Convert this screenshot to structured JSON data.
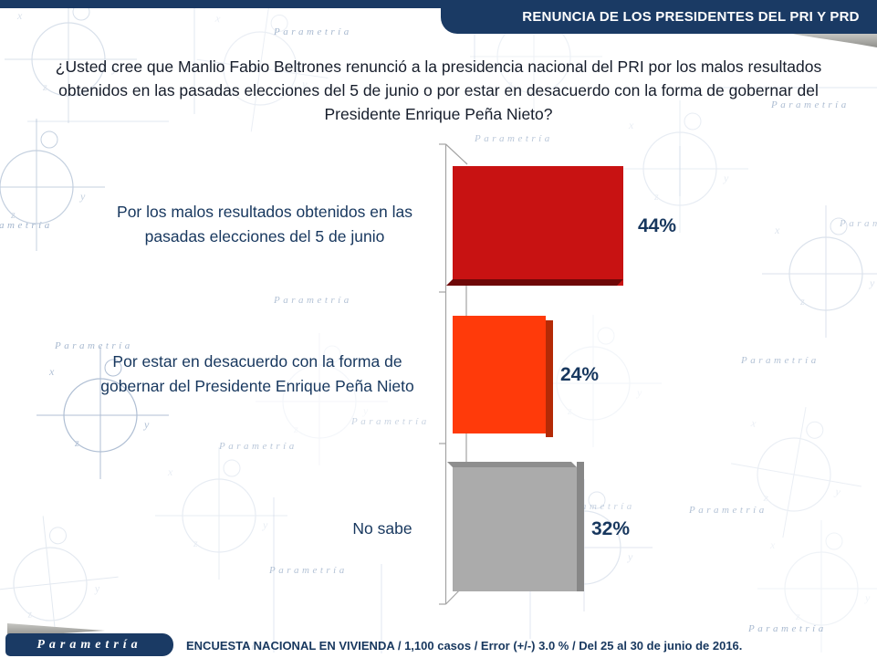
{
  "header": {
    "title": "RENUNCIA DE LOS PRESIDENTES DEL PRI Y PRD"
  },
  "question": "¿Usted cree que Manlio Fabio Beltrones renunció a la presidencia nacional del PRI por los malos resultados obtenidos en las pasadas elecciones del 5 de junio o por estar en desacuerdo con la forma de gobernar del Presidente Enrique Peña Nieto?",
  "chart_data": {
    "type": "bar",
    "orientation": "horizontal",
    "categories": [
      "Por los malos resultados obtenidos en las pasadas elecciones del 5 de junio",
      "Por estar en desacuerdo con la forma de gobernar del Presidente Enrique Peña Nieto",
      "No sabe"
    ],
    "values": [
      44,
      24,
      32
    ],
    "value_labels": [
      "44%",
      "24%",
      "32%"
    ],
    "bar_colors": [
      "#c81212",
      "#ff3a0a",
      "#ababab"
    ],
    "unit": "%",
    "xlim": [
      0,
      100
    ],
    "grid": false,
    "legend": "none",
    "style": "3d-horizontal-bars"
  },
  "footer": {
    "logo_text": "Parametría",
    "source_text": "ENCUESTA NACIONAL EN VIVIENDA / 1,100 casos / Error (+/-) 3.0 % / Del 25 al 30 de junio de 2016."
  },
  "watermark_text": "Parametría",
  "watermark_letters": {
    "x": "x",
    "y": "y",
    "z": "z"
  },
  "colors": {
    "banner_navy": "#1a3a64",
    "text_navy": "#17375e",
    "bar_red": "#c81212",
    "bar_orange": "#ff3a0a",
    "bar_gray": "#ababab",
    "fold_gray": "#a9a9a5"
  }
}
